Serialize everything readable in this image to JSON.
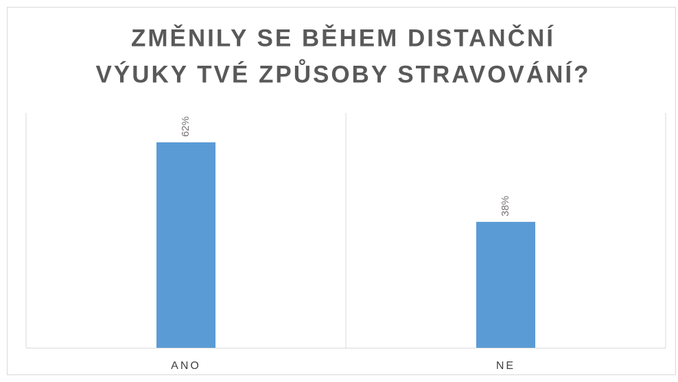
{
  "chart_data": {
    "type": "bar",
    "title": [
      "ZMĚNILY SE BĚHEM DISTANČNÍ",
      "VÝUKY TVÉ ZPŮSOBY STRAVOVÁNÍ?"
    ],
    "categories": [
      "ANO",
      "NE"
    ],
    "values": [
      62,
      38
    ],
    "value_labels": [
      "62%",
      "38%"
    ],
    "color": "#5b9bd5"
  }
}
